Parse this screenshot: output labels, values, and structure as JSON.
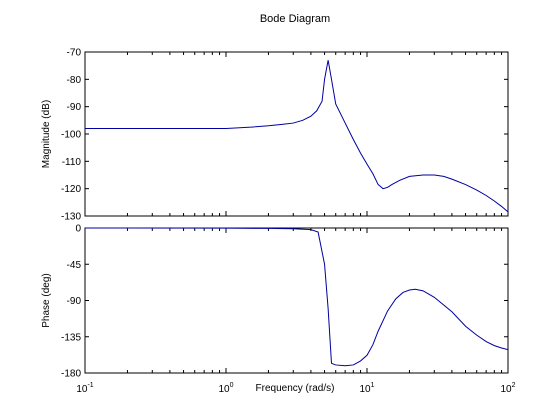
{
  "chart_data": {
    "type": "line",
    "title": "Bode Diagram",
    "xlabel": "Frequency  (rad/s)",
    "xscale": "log",
    "xlim": [
      0.1,
      100
    ],
    "x_ticks": [
      {
        "value": 0.1,
        "base": "10",
        "exp": "-1"
      },
      {
        "value": 1,
        "base": "10",
        "exp": "0"
      },
      {
        "value": 10,
        "base": "10",
        "exp": "1"
      },
      {
        "value": 100,
        "base": "10",
        "exp": "2"
      }
    ],
    "grid": false,
    "line_color": "#0000a0",
    "panels": [
      {
        "ylabel": "Magnitude (dB)",
        "ylim": [
          -130,
          -70
        ],
        "yticks": [
          -70,
          -80,
          -90,
          -100,
          -110,
          -120,
          -130
        ],
        "series": [
          {
            "x": [
              0.1,
              0.5,
              1.0,
              1.5,
              2.0,
              2.5,
              3.0,
              3.5,
              4.0,
              4.4,
              4.8,
              5.0,
              5.3,
              5.6,
              6.0,
              7.0,
              8.0,
              9.0,
              10.0,
              11.0,
              12.0,
              13.0,
              14.0,
              15.0,
              17.0,
              20.0,
              25.0,
              30.0,
              35.0,
              40.0,
              50.0,
              60.0,
              70.0,
              80.0,
              90.0,
              100.0
            ],
            "y": [
              -98,
              -98,
              -98,
              -97.5,
              -97,
              -96.5,
              -96,
              -95,
              -93.5,
              -91.5,
              -88,
              -80,
              -73,
              -80,
              -89,
              -96,
              -102,
              -107,
              -111,
              -114.5,
              -118.5,
              -120,
              -119.5,
              -118.5,
              -117,
              -115.5,
              -115,
              -115,
              -115.5,
              -116.5,
              -118.5,
              -120.5,
              -122.5,
              -124.5,
              -126.5,
              -128.5
            ]
          }
        ]
      },
      {
        "ylabel": "Phase (deg)",
        "ylim": [
          -180,
          0
        ],
        "yticks": [
          0,
          -45,
          -90,
          -135,
          -180
        ],
        "series": [
          {
            "x": [
              0.1,
              1.0,
              2.0,
              3.0,
              4.0,
              4.5,
              5.0,
              5.3,
              5.6,
              6.0,
              7.0,
              8.0,
              9.0,
              10.0,
              11.0,
              12.0,
              14.0,
              16.0,
              18.0,
              20.0,
              22.0,
              25.0,
              30.0,
              40.0,
              50.0,
              60.0,
              70.0,
              80.0,
              90.0,
              100.0
            ],
            "y": [
              0,
              -0.2,
              -0.5,
              -1,
              -2,
              -5,
              -45,
              -100,
              -168,
              -170,
              -171,
              -170,
              -165,
              -158,
              -145,
              -128,
              -103,
              -88,
              -80,
              -77,
              -76,
              -78,
              -86,
              -104,
              -122,
              -133,
              -141,
              -146,
              -149,
              -151
            ]
          }
        ]
      }
    ]
  }
}
